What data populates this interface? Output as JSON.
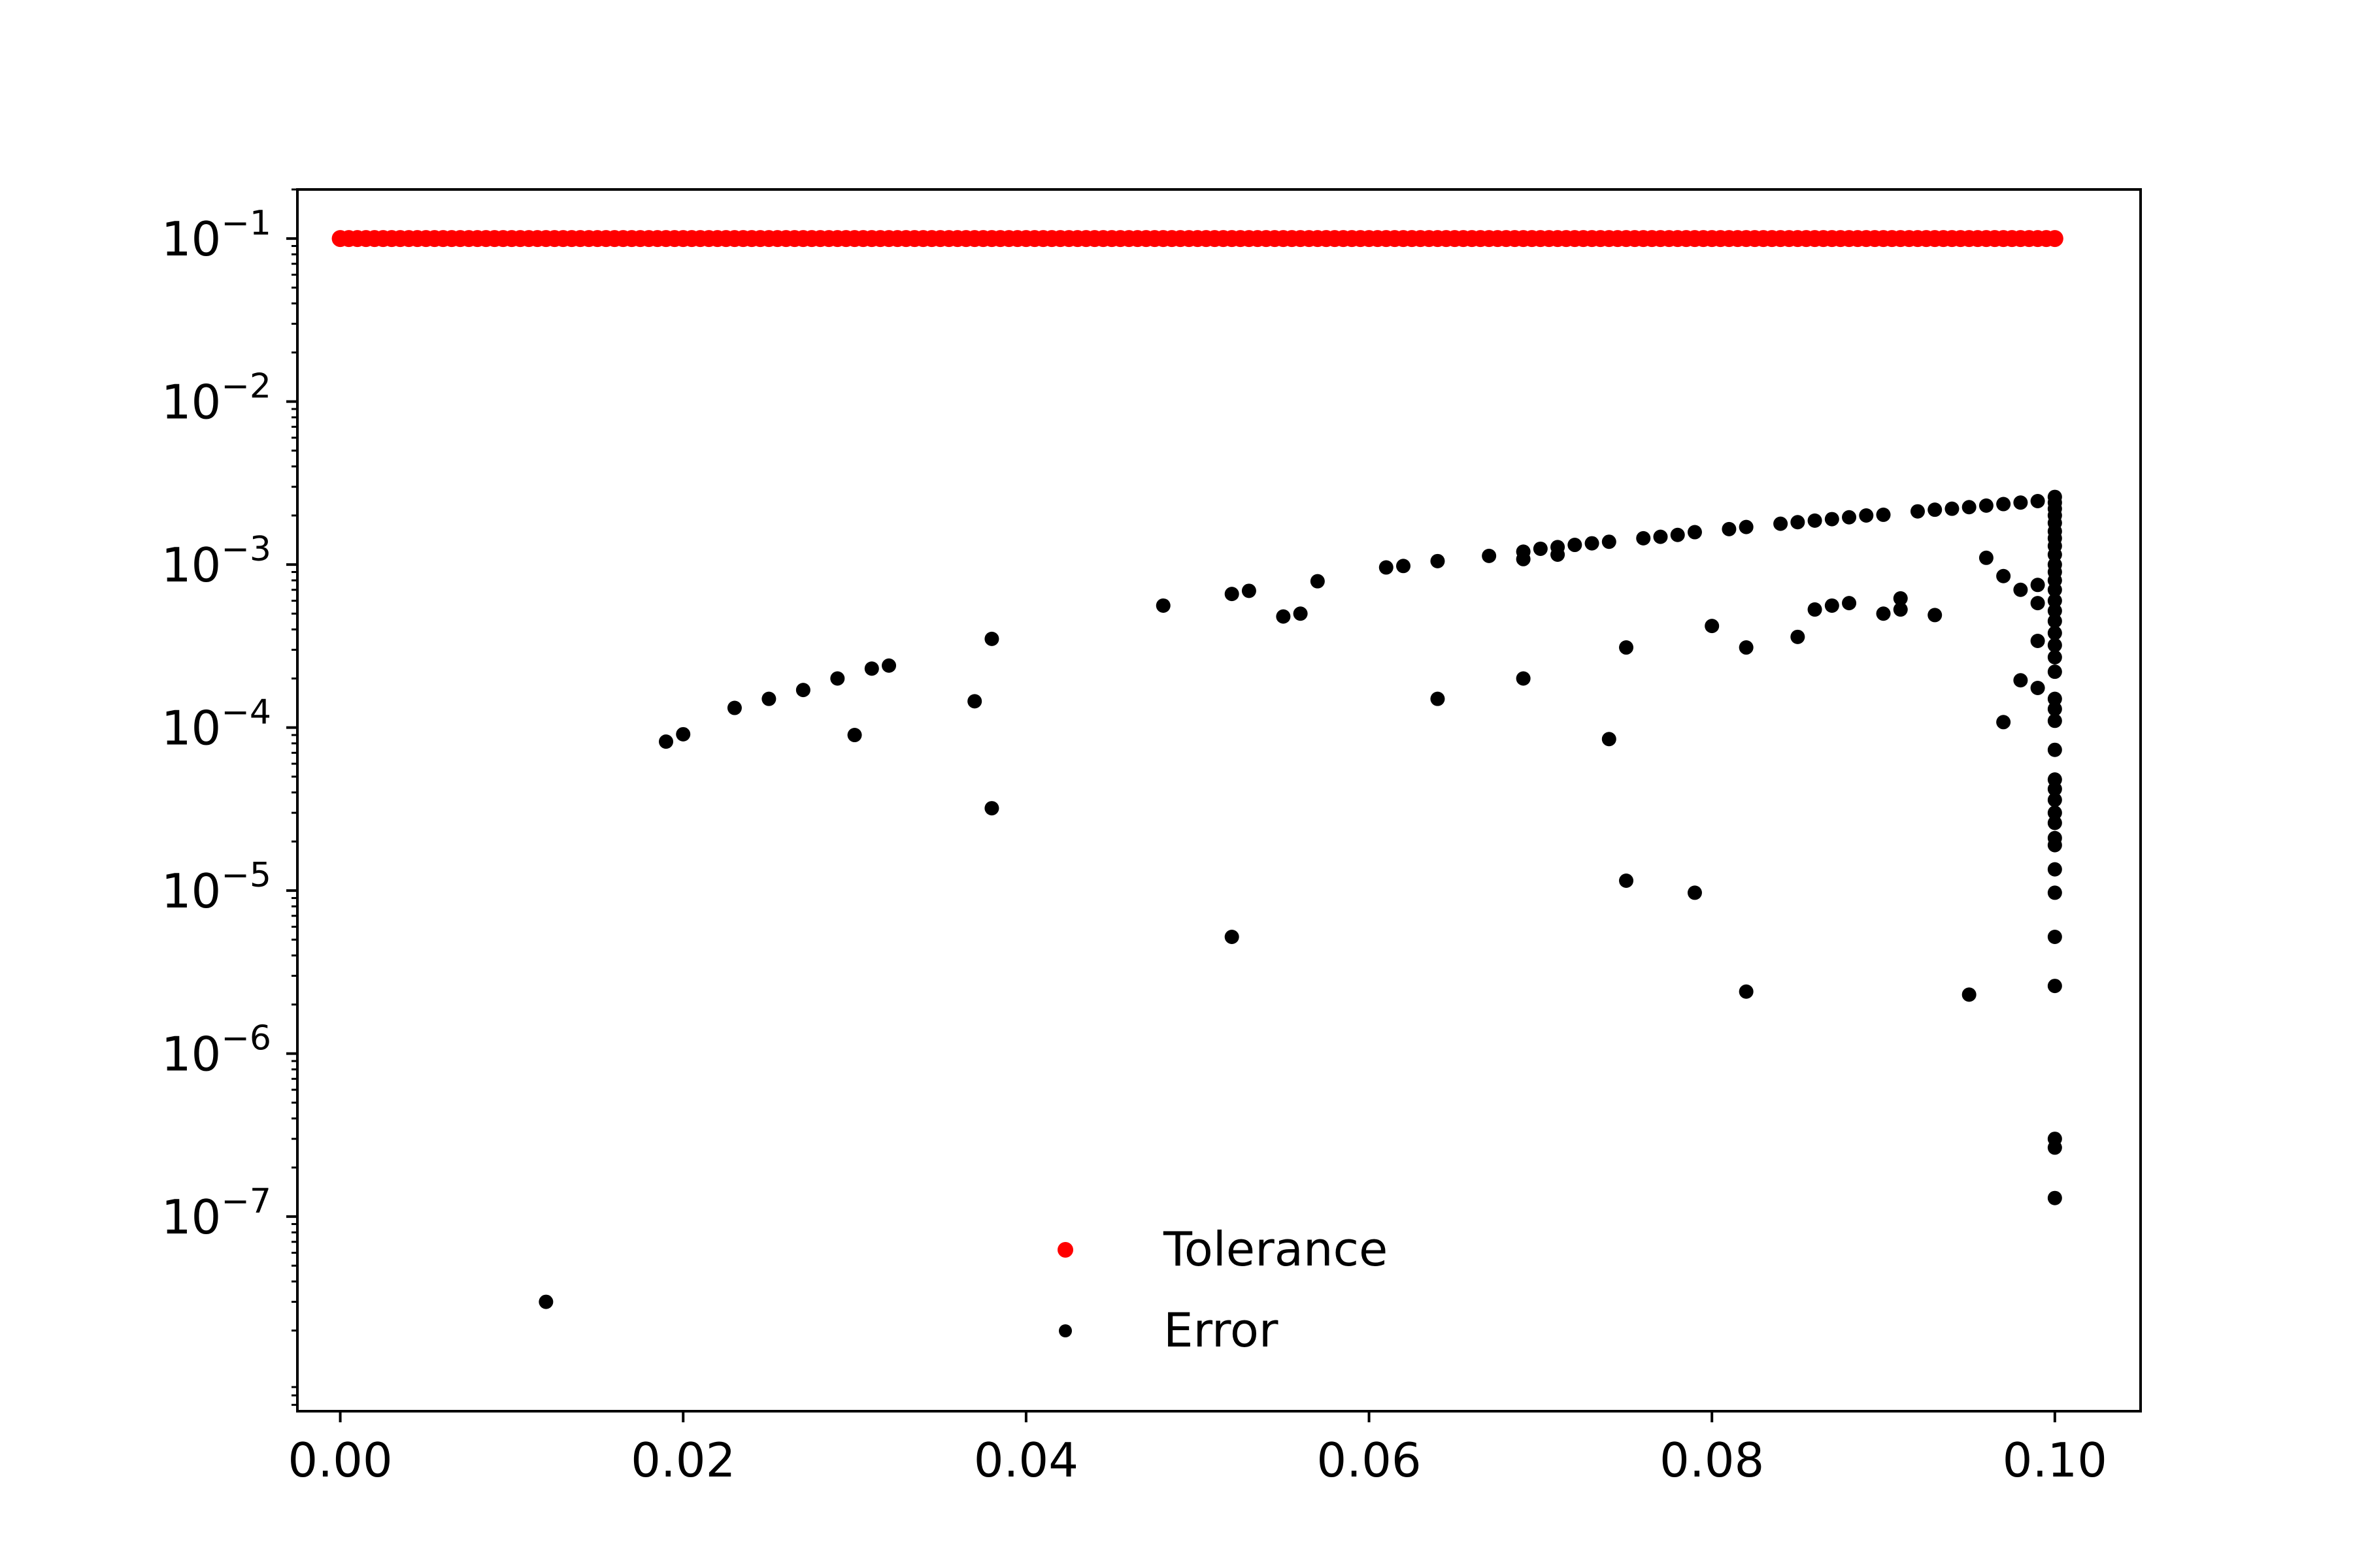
{
  "chart_data": {
    "type": "scatter",
    "title": "",
    "xlabel": "",
    "ylabel": "",
    "xlim": [
      -0.0025,
      0.105
    ],
    "ylim": [
      6.4e-09,
      0.2
    ],
    "yscale": "log",
    "grid": false,
    "legend_position": "bottom-center",
    "x_ticks": [
      {
        "value": 0.0,
        "label": "0.00"
      },
      {
        "value": 0.02,
        "label": "0.02"
      },
      {
        "value": 0.04,
        "label": "0.04"
      },
      {
        "value": 0.06,
        "label": "0.06"
      },
      {
        "value": 0.08,
        "label": "0.08"
      },
      {
        "value": 0.1,
        "label": "0.10"
      }
    ],
    "y_ticks": [
      {
        "exp": -1,
        "base": "10",
        "sup": "−1"
      },
      {
        "exp": -2,
        "base": "10",
        "sup": "−2"
      },
      {
        "exp": -3,
        "base": "10",
        "sup": "−3"
      },
      {
        "exp": -4,
        "base": "10",
        "sup": "−4"
      },
      {
        "exp": -5,
        "base": "10",
        "sup": "−5"
      },
      {
        "exp": -6,
        "base": "10",
        "sup": "−6"
      },
      {
        "exp": -7,
        "base": "10",
        "sup": "−7"
      }
    ],
    "series": [
      {
        "name": "Tolerance",
        "color": "#ff0000",
        "constant_y": 0.1,
        "x_range": [
          0.0,
          0.1
        ],
        "x_step": 0.0005
      },
      {
        "name": "Error",
        "color": "#000000",
        "points": [
          [
            0.012,
            3e-08
          ],
          [
            0.019,
            8.2e-05
          ],
          [
            0.02,
            9.1e-05
          ],
          [
            0.023,
            0.000132
          ],
          [
            0.025,
            0.00015
          ],
          [
            0.027,
            0.00017
          ],
          [
            0.029,
            0.0002
          ],
          [
            0.03,
            9e-05
          ],
          [
            0.031,
            0.00023
          ],
          [
            0.032,
            0.00024
          ],
          [
            0.037,
            0.000145
          ],
          [
            0.038,
            0.00035
          ],
          [
            0.038,
            3.2e-05
          ],
          [
            0.048,
            0.00056
          ],
          [
            0.052,
            0.00066
          ],
          [
            0.052,
            5.2e-06
          ],
          [
            0.053,
            0.00069
          ],
          [
            0.055,
            0.00048
          ],
          [
            0.056,
            0.0005
          ],
          [
            0.057,
            0.00079
          ],
          [
            0.061,
            0.00096
          ],
          [
            0.062,
            0.00098
          ],
          [
            0.064,
            0.00105
          ],
          [
            0.064,
            0.00015
          ],
          [
            0.067,
            0.00113
          ],
          [
            0.069,
            0.0012
          ],
          [
            0.069,
            0.00108
          ],
          [
            0.069,
            0.0002
          ],
          [
            0.07,
            0.00125
          ],
          [
            0.071,
            0.00128
          ],
          [
            0.071,
            0.00115
          ],
          [
            0.072,
            0.00132
          ],
          [
            0.073,
            0.00135
          ],
          [
            0.074,
            0.00138
          ],
          [
            0.074,
            8.5e-05
          ],
          [
            0.075,
            0.00031
          ],
          [
            0.075,
            1.15e-05
          ],
          [
            0.076,
            0.00145
          ],
          [
            0.077,
            0.00148
          ],
          [
            0.078,
            0.00152
          ],
          [
            0.079,
            0.00158
          ],
          [
            0.079,
            9.7e-06
          ],
          [
            0.08,
            0.00042
          ],
          [
            0.081,
            0.00165
          ],
          [
            0.082,
            0.0017
          ],
          [
            0.082,
            0.00031
          ],
          [
            0.082,
            2.4e-06
          ],
          [
            0.084,
            0.00178
          ],
          [
            0.085,
            0.00182
          ],
          [
            0.085,
            0.00036
          ],
          [
            0.086,
            0.00186
          ],
          [
            0.086,
            0.00053
          ],
          [
            0.087,
            0.0019
          ],
          [
            0.087,
            0.00056
          ],
          [
            0.088,
            0.00195
          ],
          [
            0.088,
            0.00058
          ],
          [
            0.089,
            0.002
          ],
          [
            0.09,
            0.00202
          ],
          [
            0.09,
            0.0005
          ],
          [
            0.091,
            0.00062
          ],
          [
            0.091,
            0.00053
          ],
          [
            0.092,
            0.00212
          ],
          [
            0.093,
            0.00217
          ],
          [
            0.093,
            0.00049
          ],
          [
            0.094,
            0.0022
          ],
          [
            0.095,
            0.00225
          ],
          [
            0.095,
            2.3e-06
          ],
          [
            0.096,
            0.0023
          ],
          [
            0.096,
            0.0011
          ],
          [
            0.097,
            0.00235
          ],
          [
            0.097,
            0.00085
          ],
          [
            0.097,
            0.000108
          ],
          [
            0.098,
            0.0024
          ],
          [
            0.098,
            0.0007
          ],
          [
            0.098,
            0.000195
          ],
          [
            0.099,
            0.00245
          ],
          [
            0.099,
            0.00075
          ],
          [
            0.099,
            0.00058
          ],
          [
            0.099,
            0.00034
          ],
          [
            0.099,
            0.000175
          ],
          [
            0.1,
            0.0026
          ],
          [
            0.1,
            0.0024
          ],
          [
            0.1,
            0.0022
          ],
          [
            0.1,
            0.002
          ],
          [
            0.1,
            0.0018
          ],
          [
            0.1,
            0.0016
          ],
          [
            0.1,
            0.00145
          ],
          [
            0.1,
            0.0013
          ],
          [
            0.1,
            0.00115
          ],
          [
            0.1,
            0.001
          ],
          [
            0.1,
            0.0009
          ],
          [
            0.1,
            0.0008
          ],
          [
            0.1,
            0.0007
          ],
          [
            0.1,
            0.0006
          ],
          [
            0.1,
            0.00052
          ],
          [
            0.1,
            0.00045
          ],
          [
            0.1,
            0.00038
          ],
          [
            0.1,
            0.00032
          ],
          [
            0.1,
            0.00027
          ],
          [
            0.1,
            0.00022
          ],
          [
            0.1,
            0.00015
          ],
          [
            0.1,
            0.00013
          ],
          [
            0.1,
            0.00011
          ],
          [
            0.1,
            7.3e-05
          ],
          [
            0.1,
            4.8e-05
          ],
          [
            0.1,
            4.2e-05
          ],
          [
            0.1,
            3.6e-05
          ],
          [
            0.1,
            3e-05
          ],
          [
            0.1,
            2.6e-05
          ],
          [
            0.1,
            2.1e-05
          ],
          [
            0.1,
            1.9e-05
          ],
          [
            0.1,
            1.35e-05
          ],
          [
            0.1,
            9.7e-06
          ],
          [
            0.1,
            5.2e-06
          ],
          [
            0.1,
            2.6e-06
          ],
          [
            0.1,
            3e-07
          ],
          [
            0.1,
            2.65e-07
          ],
          [
            0.1,
            1.3e-07
          ]
        ]
      }
    ]
  }
}
